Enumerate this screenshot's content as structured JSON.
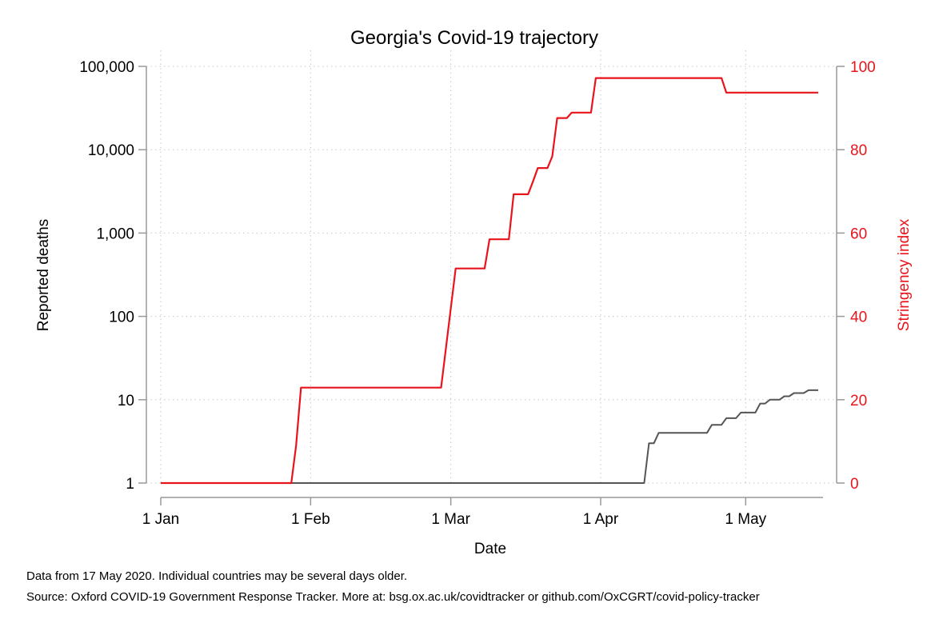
{
  "chart_data": {
    "type": "line",
    "title": "Georgia's Covid-19 trajectory",
    "xlabel": "Date",
    "ylabel_left": "Reported deaths",
    "ylabel_right": "Stringency index",
    "left_axis_scale": "log",
    "left_ylim": [
      1,
      100000
    ],
    "left_ticks": [
      1,
      10,
      100,
      1000,
      10000,
      100000
    ],
    "left_tick_labels": [
      "1",
      "10",
      "100",
      "1,000",
      "10,000",
      "100,000"
    ],
    "right_ylim": [
      0,
      100
    ],
    "right_ticks": [
      0,
      20,
      40,
      60,
      80,
      100
    ],
    "right_tick_labels": [
      "0",
      "20",
      "40",
      "60",
      "80",
      "100"
    ],
    "xlim": [
      "2020-01-01",
      "2020-05-17"
    ],
    "x_ticks": [
      "2020-01-01",
      "2020-02-01",
      "2020-03-01",
      "2020-04-01",
      "2020-05-01"
    ],
    "x_tick_labels": [
      "1 Jan",
      "1 Feb",
      "1 Mar",
      "1 Apr",
      "1 May"
    ],
    "grid": true,
    "colors": {
      "deaths": "#555555",
      "stringency": "#e8141c",
      "axis": "#999999"
    },
    "series": [
      {
        "axis": "left",
        "points": [
          [
            "2020-01-01",
            1
          ],
          [
            "2020-04-10",
            1
          ],
          [
            "2020-04-11",
            3
          ],
          [
            "2020-04-12",
            3
          ],
          [
            "2020-04-13",
            4
          ],
          [
            "2020-04-23",
            4
          ],
          [
            "2020-04-24",
            5
          ],
          [
            "2020-04-26",
            5
          ],
          [
            "2020-04-27",
            6
          ],
          [
            "2020-04-29",
            6
          ],
          [
            "2020-04-30",
            7
          ],
          [
            "2020-05-03",
            7
          ],
          [
            "2020-05-04",
            9
          ],
          [
            "2020-05-05",
            9
          ],
          [
            "2020-05-06",
            10
          ],
          [
            "2020-05-08",
            10
          ],
          [
            "2020-05-09",
            11
          ],
          [
            "2020-05-10",
            11
          ],
          [
            "2020-05-11",
            12
          ],
          [
            "2020-05-13",
            12
          ],
          [
            "2020-05-14",
            13
          ],
          [
            "2020-05-16",
            13
          ]
        ]
      },
      {
        "axis": "right",
        "points": [
          [
            "2020-01-01",
            0
          ],
          [
            "2020-01-28",
            0
          ],
          [
            "2020-01-29",
            9
          ],
          [
            "2020-01-30",
            22.9
          ],
          [
            "2020-02-28",
            22.9
          ],
          [
            "2020-03-02",
            51.5
          ],
          [
            "2020-03-08",
            51.5
          ],
          [
            "2020-03-09",
            58.5
          ],
          [
            "2020-03-13",
            58.5
          ],
          [
            "2020-03-14",
            69.3
          ],
          [
            "2020-03-17",
            69.3
          ],
          [
            "2020-03-18",
            72.4
          ],
          [
            "2020-03-19",
            75.6
          ],
          [
            "2020-03-21",
            75.6
          ],
          [
            "2020-03-22",
            78.4
          ],
          [
            "2020-03-23",
            87.6
          ],
          [
            "2020-03-25",
            87.6
          ],
          [
            "2020-03-26",
            88.9
          ],
          [
            "2020-03-30",
            88.9
          ],
          [
            "2020-03-31",
            97.2
          ],
          [
            "2020-04-26",
            97.2
          ],
          [
            "2020-04-27",
            93.7
          ],
          [
            "2020-05-16",
            93.7
          ]
        ]
      }
    ]
  },
  "footnotes": [
    "Data from 17 May 2020. Individual countries may be several days older.",
    "Source: Oxford COVID-19 Government Response Tracker. More at: bsg.ox.ac.uk/covidtracker or github.com/OxCGRT/covid-policy-tracker"
  ]
}
